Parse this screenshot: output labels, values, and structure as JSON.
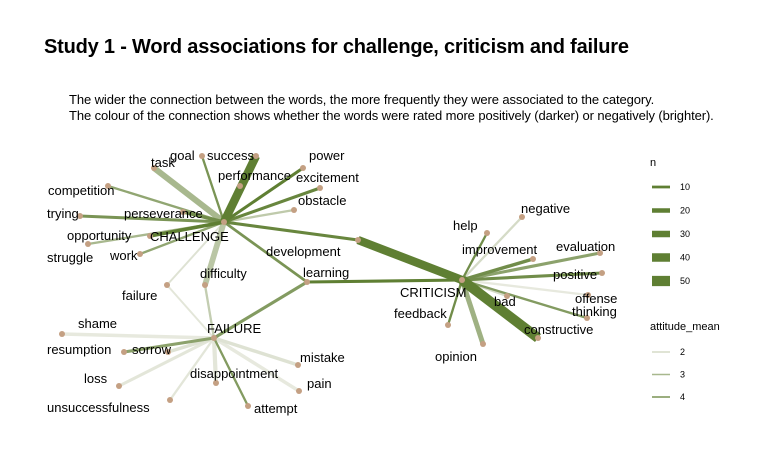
{
  "title": "Study 1 - Word associations for challenge, criticism and failure",
  "subtitle_line1": "The wider the connection between the words, the more frequently they were associated to the category.",
  "subtitle_line2": "The colour of the connection shows whether the words were rated more positively (darker) or negatively (brighter).",
  "colors": {
    "dark": "#5f7f33",
    "light": "#ecede4",
    "node": "#c4a083"
  },
  "categories": [
    "CHALLENGE",
    "CRITICISM",
    "FAILURE"
  ],
  "nodes": [
    {
      "label": "CHALLENGE"
    },
    {
      "label": "CRITICISM"
    },
    {
      "label": "FAILURE"
    },
    {
      "label": "goal"
    },
    {
      "label": "success"
    },
    {
      "label": "power"
    },
    {
      "label": "task"
    },
    {
      "label": "performance"
    },
    {
      "label": "excitement"
    },
    {
      "label": "competition"
    },
    {
      "label": "obstacle"
    },
    {
      "label": "perseverance"
    },
    {
      "label": "trying"
    },
    {
      "label": "opportunity"
    },
    {
      "label": "struggle"
    },
    {
      "label": "work"
    },
    {
      "label": "development"
    },
    {
      "label": "difficulty"
    },
    {
      "label": "learning"
    },
    {
      "label": "failure"
    },
    {
      "label": "negative"
    },
    {
      "label": "help"
    },
    {
      "label": "improvement"
    },
    {
      "label": "evaluation"
    },
    {
      "label": "positive"
    },
    {
      "label": "offense"
    },
    {
      "label": "bad"
    },
    {
      "label": "thinking"
    },
    {
      "label": "feedback"
    },
    {
      "label": "constructive"
    },
    {
      "label": "opinion"
    },
    {
      "label": "shame"
    },
    {
      "label": "resumption"
    },
    {
      "label": "sorrow"
    },
    {
      "label": "loss"
    },
    {
      "label": "disappointment"
    },
    {
      "label": "mistake"
    },
    {
      "label": "pain"
    },
    {
      "label": "unsuccessfulness"
    },
    {
      "label": "attempt"
    }
  ],
  "edges": [
    {
      "from": "CHALLENGE",
      "to": "goal",
      "n": 8,
      "attitude": 4.0
    },
    {
      "from": "CHALLENGE",
      "to": "success",
      "n": 40,
      "attitude": 4.6
    },
    {
      "from": "CHALLENGE",
      "to": "power",
      "n": 12,
      "attitude": 4.6
    },
    {
      "from": "CHALLENGE",
      "to": "task",
      "n": 28,
      "attitude": 3.0
    },
    {
      "from": "CHALLENGE",
      "to": "performance",
      "n": 14,
      "attitude": 4.2
    },
    {
      "from": "CHALLENGE",
      "to": "excitement",
      "n": 12,
      "attitude": 4.4
    },
    {
      "from": "CHALLENGE",
      "to": "competition",
      "n": 8,
      "attitude": 3.5
    },
    {
      "from": "CHALLENGE",
      "to": "obstacle",
      "n": 8,
      "attitude": 2.5
    },
    {
      "from": "CHALLENGE",
      "to": "perseverance",
      "n": 14,
      "attitude": 4.2
    },
    {
      "from": "CHALLENGE",
      "to": "trying",
      "n": 12,
      "attitude": 4.0
    },
    {
      "from": "CHALLENGE",
      "to": "opportunity",
      "n": 14,
      "attitude": 4.6
    },
    {
      "from": "CHALLENGE",
      "to": "struggle",
      "n": 8,
      "attitude": 3.0
    },
    {
      "from": "CHALLENGE",
      "to": "work",
      "n": 8,
      "attitude": 3.5
    },
    {
      "from": "CHALLENGE",
      "to": "development",
      "n": 12,
      "attitude": 4.4
    },
    {
      "from": "CHALLENGE",
      "to": "difficulty",
      "n": 26,
      "attitude": 2.6
    },
    {
      "from": "CHALLENGE",
      "to": "learning",
      "n": 10,
      "attitude": 4.0
    },
    {
      "from": "CHALLENGE",
      "to": "failure",
      "n": 6,
      "attitude": 1.8
    },
    {
      "from": "CRITICISM",
      "to": "development",
      "n": 40,
      "attitude": 4.6
    },
    {
      "from": "CRITICISM",
      "to": "learning",
      "n": 12,
      "attitude": 4.6
    },
    {
      "from": "CRITICISM",
      "to": "negative",
      "n": 8,
      "attitude": 2.0
    },
    {
      "from": "CRITICISM",
      "to": "help",
      "n": 8,
      "attitude": 4.2
    },
    {
      "from": "CRITICISM",
      "to": "improvement",
      "n": 14,
      "attitude": 4.2
    },
    {
      "from": "CRITICISM",
      "to": "evaluation",
      "n": 12,
      "attitude": 3.6
    },
    {
      "from": "CRITICISM",
      "to": "positive",
      "n": 12,
      "attitude": 4.2
    },
    {
      "from": "CRITICISM",
      "to": "offense",
      "n": 8,
      "attitude": 1.6
    },
    {
      "from": "CRITICISM",
      "to": "bad",
      "n": 8,
      "attitude": 2.0
    },
    {
      "from": "CRITICISM",
      "to": "thinking",
      "n": 8,
      "attitude": 3.8
    },
    {
      "from": "CRITICISM",
      "to": "feedback",
      "n": 8,
      "attitude": 4.2
    },
    {
      "from": "CRITICISM",
      "to": "constructive",
      "n": 48,
      "attitude": 4.6
    },
    {
      "from": "CRITICISM",
      "to": "opinion",
      "n": 22,
      "attitude": 3.2
    },
    {
      "from": "FAILURE",
      "to": "learning",
      "n": 12,
      "attitude": 3.8
    },
    {
      "from": "FAILURE",
      "to": "difficulty",
      "n": 8,
      "attitude": 2.4
    },
    {
      "from": "FAILURE",
      "to": "failure",
      "n": 6,
      "attitude": 1.7
    },
    {
      "from": "FAILURE",
      "to": "shame",
      "n": 14,
      "attitude": 1.6
    },
    {
      "from": "FAILURE",
      "to": "resumption",
      "n": 12,
      "attitude": 3.6
    },
    {
      "from": "FAILURE",
      "to": "sorrow",
      "n": 14,
      "attitude": 1.8
    },
    {
      "from": "FAILURE",
      "to": "loss",
      "n": 12,
      "attitude": 1.7
    },
    {
      "from": "FAILURE",
      "to": "disappointment",
      "n": 18,
      "attitude": 1.7
    },
    {
      "from": "FAILURE",
      "to": "mistake",
      "n": 14,
      "attitude": 1.8
    },
    {
      "from": "FAILURE",
      "to": "pain",
      "n": 14,
      "attitude": 1.6
    },
    {
      "from": "FAILURE",
      "to": "unsuccessfulness",
      "n": 8,
      "attitude": 1.7
    },
    {
      "from": "FAILURE",
      "to": "attempt",
      "n": 8,
      "attitude": 3.8
    }
  ],
  "legend": {
    "n_title": "n",
    "n_items": [
      {
        "label": "10",
        "n": 10
      },
      {
        "label": "20",
        "n": 20
      },
      {
        "label": "30",
        "n": 30
      },
      {
        "label": "40",
        "n": 40
      },
      {
        "label": "50",
        "n": 50
      }
    ],
    "attitude_title": "attitude_mean",
    "attitude_items": [
      {
        "label": "2",
        "value": 2
      },
      {
        "label": "3",
        "value": 3
      },
      {
        "label": "4",
        "value": 4
      }
    ]
  }
}
